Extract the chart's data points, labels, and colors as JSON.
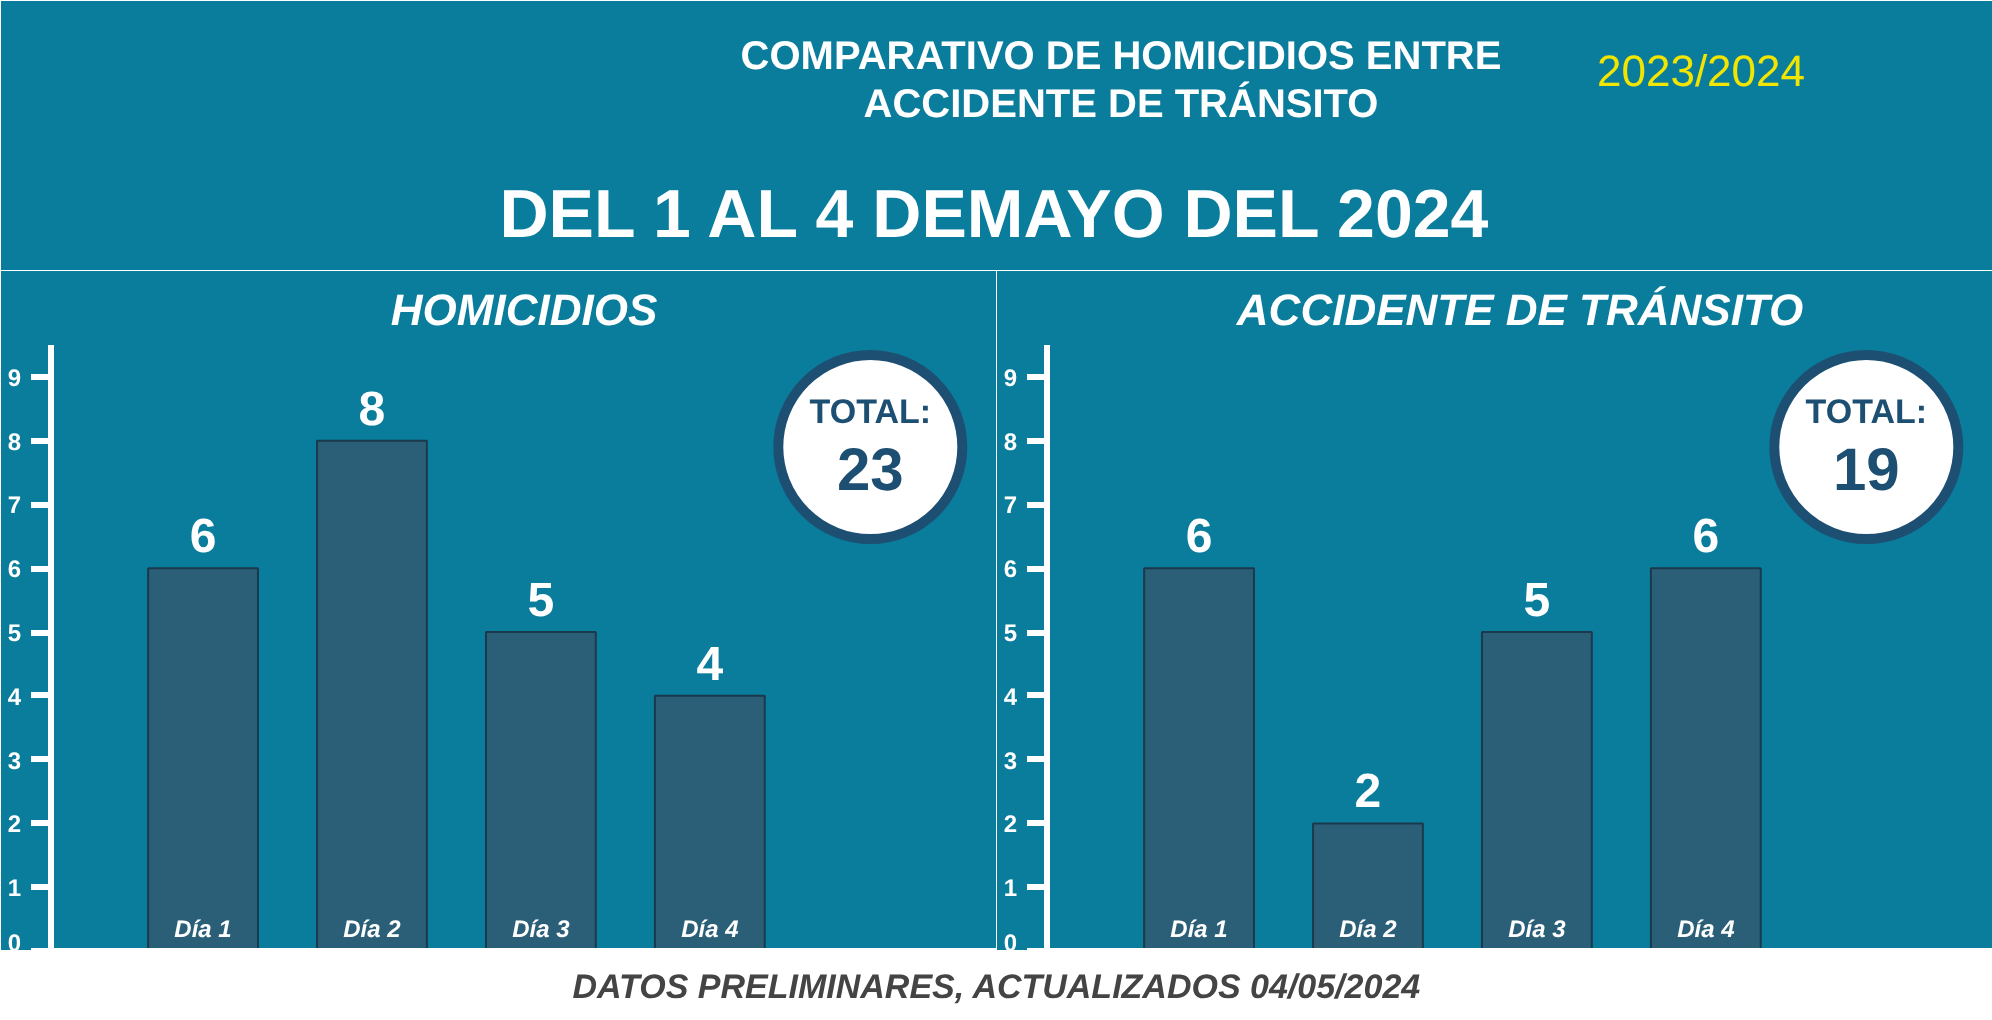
{
  "chart_data": [
    {
      "type": "other",
      "title": "COMPARATIVO DE HOMICIDIOS ENTRE\nACCIDENTE DE TRÁNSITO",
      "subtitle": "2023/2024",
      "annotations": [
        "DEL 1 AL 4 DEMAYO DEL 2024",
        "DATOS PRELIMINARES, ACTUALIZADOS 04/05/2024"
      ]
    },
    {
      "type": "bar",
      "title": "HOMICIDIOS",
      "categories": [
        "Día 1",
        "Día 2",
        "Día 3",
        "Día 4"
      ],
      "values": [
        6,
        8,
        5,
        4
      ],
      "color": "#2b5f78",
      "ylim": [
        0,
        9.5
      ],
      "yticks": [
        0,
        1,
        2,
        3,
        4,
        5,
        6,
        7,
        8,
        9
      ],
      "data_labels": true,
      "grid": false,
      "tick_labels": "y",
      "annotations": [
        "TOTAL:",
        "23"
      ]
    },
    {
      "type": "bar",
      "title": "ACCIDENTE DE TRÁNSITO",
      "categories": [
        "Día 1",
        "Día 2",
        "Día 3",
        "Día 4"
      ],
      "values": [
        6,
        2,
        5,
        6
      ],
      "color": "#2b5f78",
      "ylim": [
        0,
        9.5
      ],
      "yticks": [
        0,
        1,
        2,
        3,
        4,
        5,
        6,
        7,
        8,
        9
      ],
      "data_labels": true,
      "grid": false,
      "tick_labels": "y",
      "annotations": [
        "TOTAL:",
        "19"
      ]
    }
  ]
}
